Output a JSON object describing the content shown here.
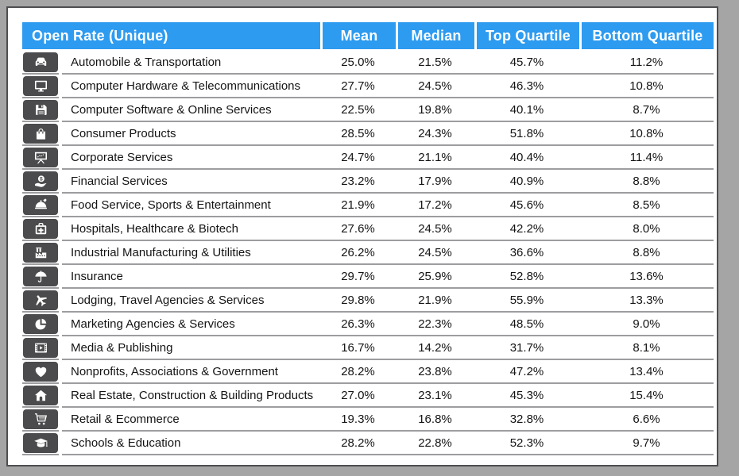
{
  "title": "Open Rate (Unique)",
  "columns": [
    "Mean",
    "Median",
    "Top Quartile",
    "Bottom Quartile"
  ],
  "rows": [
    {
      "icon": "car-icon",
      "label": "Automobile & Transportation",
      "values": [
        "25.0%",
        "21.5%",
        "45.7%",
        "11.2%"
      ]
    },
    {
      "icon": "monitor-icon",
      "label": "Computer Hardware & Telecommunications",
      "values": [
        "27.7%",
        "24.5%",
        "46.3%",
        "10.8%"
      ]
    },
    {
      "icon": "floppy-disk-icon",
      "label": "Computer Software & Online Services",
      "values": [
        "22.5%",
        "19.8%",
        "40.1%",
        "8.7%"
      ]
    },
    {
      "icon": "shopping-bag-icon",
      "label": "Consumer Products",
      "values": [
        "28.5%",
        "24.3%",
        "51.8%",
        "10.8%"
      ]
    },
    {
      "icon": "presentation-icon",
      "label": "Corporate Services",
      "values": [
        "24.7%",
        "21.1%",
        "40.4%",
        "11.4%"
      ]
    },
    {
      "icon": "money-hand-icon",
      "label": "Financial Services",
      "values": [
        "23.2%",
        "17.9%",
        "40.9%",
        "8.8%"
      ]
    },
    {
      "icon": "food-cloche-icon",
      "label": "Food Service, Sports & Entertainment",
      "values": [
        "21.9%",
        "17.2%",
        "45.6%",
        "8.5%"
      ]
    },
    {
      "icon": "medkit-icon",
      "label": "Hospitals, Healthcare & Biotech",
      "values": [
        "27.6%",
        "24.5%",
        "42.2%",
        "8.0%"
      ]
    },
    {
      "icon": "factory-icon",
      "label": "Industrial Manufacturing & Utilities",
      "values": [
        "26.2%",
        "24.5%",
        "36.6%",
        "8.8%"
      ]
    },
    {
      "icon": "umbrella-icon",
      "label": "Insurance",
      "values": [
        "29.7%",
        "25.9%",
        "52.8%",
        "13.6%"
      ]
    },
    {
      "icon": "airplane-icon",
      "label": "Lodging, Travel Agencies & Services",
      "values": [
        "29.8%",
        "21.9%",
        "55.9%",
        "13.3%"
      ]
    },
    {
      "icon": "pie-chart-icon",
      "label": "Marketing Agencies & Services",
      "values": [
        "26.3%",
        "22.3%",
        "48.5%",
        "9.0%"
      ]
    },
    {
      "icon": "film-icon",
      "label": "Media & Publishing",
      "values": [
        "16.7%",
        "14.2%",
        "31.7%",
        "8.1%"
      ]
    },
    {
      "icon": "heart-icon",
      "label": "Nonprofits, Associations & Government",
      "values": [
        "28.2%",
        "23.8%",
        "47.2%",
        "13.4%"
      ]
    },
    {
      "icon": "house-icon",
      "label": "Real Estate, Construction & Building Products",
      "values": [
        "27.0%",
        "23.1%",
        "45.3%",
        "15.4%"
      ]
    },
    {
      "icon": "shopping-cart-icon",
      "label": "Retail & Ecommerce",
      "values": [
        "19.3%",
        "16.8%",
        "32.8%",
        "6.6%"
      ]
    },
    {
      "icon": "graduation-cap-icon",
      "label": "Schools & Education",
      "values": [
        "28.2%",
        "22.8%",
        "52.3%",
        "9.7%"
      ]
    }
  ],
  "colors": {
    "header_bg": "#2D9BF0",
    "header_text": "#FFFFFF",
    "icon_bg": "#4B4B4D",
    "icon_glyph": "#FFFFFF",
    "row_separator": "#9D9DA0",
    "body_text": "#141414",
    "panel_bg": "#FFFFFF",
    "panel_border": "#4E4E50",
    "frame_bg": "#A5A5A6"
  },
  "chart_data": {
    "type": "table",
    "title": "Open Rate (Unique)",
    "columns": [
      "Mean",
      "Median",
      "Top Quartile",
      "Bottom Quartile"
    ],
    "unit": "%",
    "rows": [
      {
        "label": "Automobile & Transportation",
        "mean": 25.0,
        "median": 21.5,
        "top_quartile": 45.7,
        "bottom_quartile": 11.2
      },
      {
        "label": "Computer Hardware & Telecommunications",
        "mean": 27.7,
        "median": 24.5,
        "top_quartile": 46.3,
        "bottom_quartile": 10.8
      },
      {
        "label": "Computer Software & Online Services",
        "mean": 22.5,
        "median": 19.8,
        "top_quartile": 40.1,
        "bottom_quartile": 8.7
      },
      {
        "label": "Consumer Products",
        "mean": 28.5,
        "median": 24.3,
        "top_quartile": 51.8,
        "bottom_quartile": 10.8
      },
      {
        "label": "Corporate Services",
        "mean": 24.7,
        "median": 21.1,
        "top_quartile": 40.4,
        "bottom_quartile": 11.4
      },
      {
        "label": "Financial Services",
        "mean": 23.2,
        "median": 17.9,
        "top_quartile": 40.9,
        "bottom_quartile": 8.8
      },
      {
        "label": "Food Service, Sports & Entertainment",
        "mean": 21.9,
        "median": 17.2,
        "top_quartile": 45.6,
        "bottom_quartile": 8.5
      },
      {
        "label": "Hospitals, Healthcare & Biotech",
        "mean": 27.6,
        "median": 24.5,
        "top_quartile": 42.2,
        "bottom_quartile": 8.0
      },
      {
        "label": "Industrial Manufacturing & Utilities",
        "mean": 26.2,
        "median": 24.5,
        "top_quartile": 36.6,
        "bottom_quartile": 8.8
      },
      {
        "label": "Insurance",
        "mean": 29.7,
        "median": 25.9,
        "top_quartile": 52.8,
        "bottom_quartile": 13.6
      },
      {
        "label": "Lodging, Travel Agencies & Services",
        "mean": 29.8,
        "median": 21.9,
        "top_quartile": 55.9,
        "bottom_quartile": 13.3
      },
      {
        "label": "Marketing Agencies & Services",
        "mean": 26.3,
        "median": 22.3,
        "top_quartile": 48.5,
        "bottom_quartile": 9.0
      },
      {
        "label": "Media & Publishing",
        "mean": 16.7,
        "median": 14.2,
        "top_quartile": 31.7,
        "bottom_quartile": 8.1
      },
      {
        "label": "Nonprofits, Associations & Government",
        "mean": 28.2,
        "median": 23.8,
        "top_quartile": 47.2,
        "bottom_quartile": 13.4
      },
      {
        "label": "Real Estate, Construction & Building Products",
        "mean": 27.0,
        "median": 23.1,
        "top_quartile": 45.3,
        "bottom_quartile": 15.4
      },
      {
        "label": "Retail & Ecommerce",
        "mean": 19.3,
        "median": 16.8,
        "top_quartile": 32.8,
        "bottom_quartile": 6.6
      },
      {
        "label": "Schools & Education",
        "mean": 28.2,
        "median": 22.8,
        "top_quartile": 52.3,
        "bottom_quartile": 9.7
      }
    ]
  }
}
